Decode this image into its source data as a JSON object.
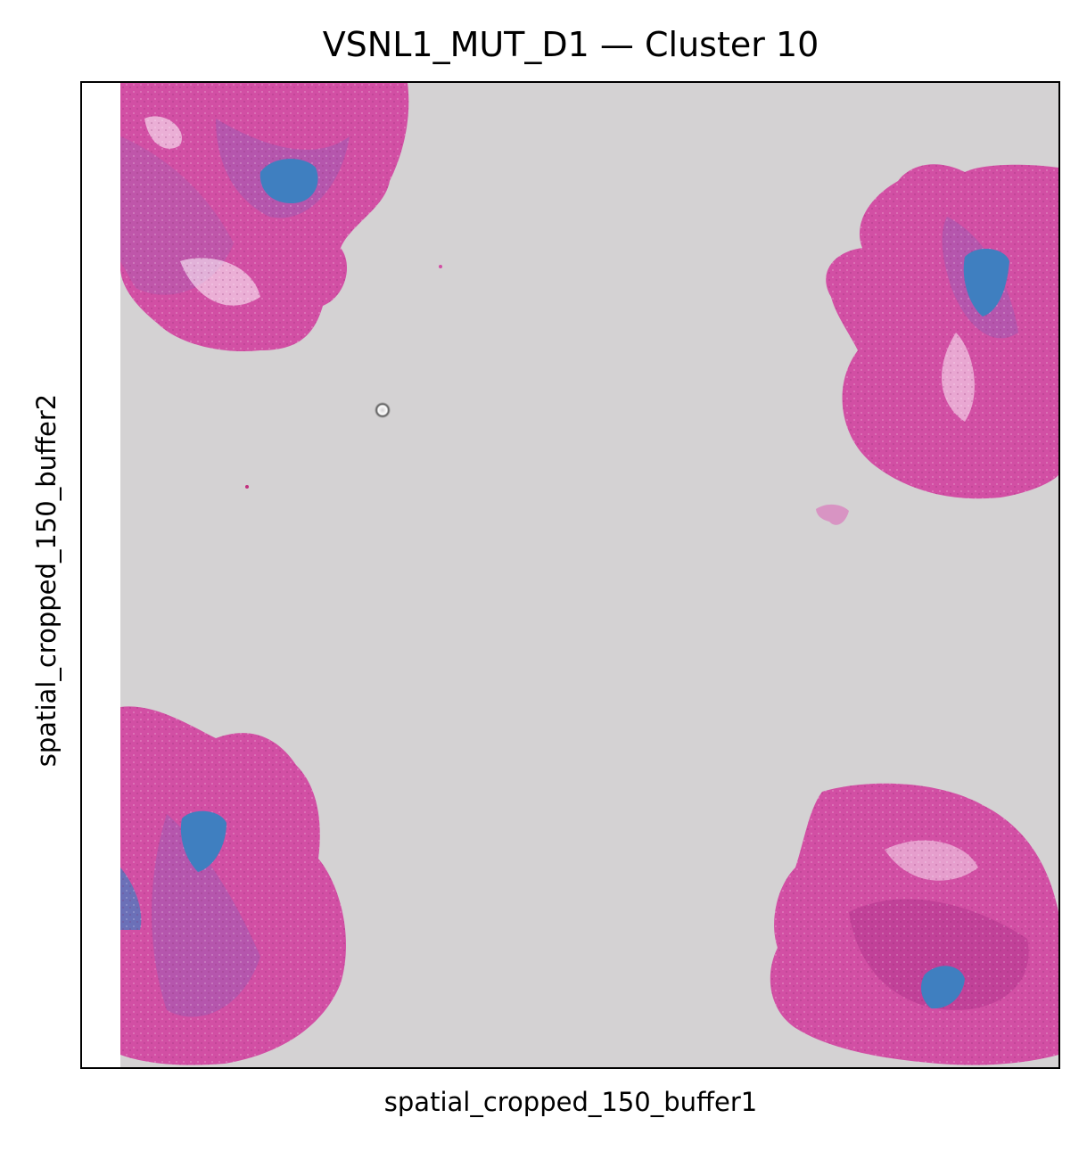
{
  "title": "VSNL1_MUT_D1 — Cluster 10",
  "xlabel": "spatial_cropped_150_buffer1",
  "ylabel": "spatial_cropped_150_buffer2",
  "colors": {
    "background_slide": "#d4d2d3",
    "tissue_pink": "#d24fa4",
    "tissue_dark": "#b83a92",
    "tissue_purple": "#9c5cb5",
    "cluster_highlight": "#3f7fc0"
  }
}
